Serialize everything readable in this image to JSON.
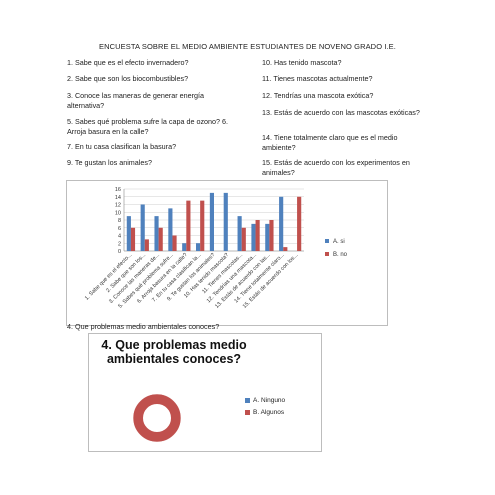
{
  "document": {
    "title": "ENCUESTA SOBRE EL MEDIO AMBIENTE ESTUDIANTES DE NOVENO GRADO I.E.",
    "questions_left": [
      "1. Sabe que es el efecto invernadero?",
      "2. Sabe que son los biocombustibles?",
      "3. Conoce las maneras de generar energía alternativa?",
      "5. Sabes qué problema sufre la capa de ozono? 6. Arroja basura en la calle?",
      "7. En tu casa clasifican la basura?",
      "9. Te gustan los animales?"
    ],
    "questions_right": [
      "10. Has tenido mascota?",
      "11. Tienes mascotas actualmente?",
      "12. Tendrías una mascota exótica?",
      "13. Estás de acuerdo con las mascotas exóticas?",
      "14. Tiene totalmente claro que es el medio ambiente?",
      "15. Estás de acuerdo con los experimentos en animales?"
    ],
    "q4_label": "4. Que problemas medio ambientales conoces?"
  },
  "chart_data": [
    {
      "type": "bar",
      "categories": [
        "1. Sabe que es el efecto...",
        "2. Sabe que son los...",
        "3. Conoce las maneras de...",
        "5. Sabes qué problema sufre...",
        "6. Arroja basura en la calle?",
        "7. En tu casa clasifican la...",
        "9. Te gustan los animales?",
        "10. Has tenido mascota?",
        "11. Tienes mascotas...",
        "12. Tendrías una mascota...",
        "13. Estás de acuerdo con las...",
        "14. Tiene totalmente claro...",
        "15. Estás de acuerdo con los..."
      ],
      "series": [
        {
          "name": "A. si",
          "color": "#4f81bd",
          "values": [
            9,
            12,
            9,
            11,
            2,
            2,
            15,
            15,
            9,
            7,
            7,
            14,
            0
          ]
        },
        {
          "name": "B. no",
          "color": "#c0504d",
          "values": [
            6,
            3,
            6,
            4,
            13,
            13,
            0,
            0,
            6,
            8,
            8,
            1,
            14
          ]
        }
      ],
      "ylim": [
        0,
        16
      ],
      "yticks": [
        0,
        2,
        4,
        6,
        8,
        10,
        12,
        14,
        16
      ],
      "grid": true,
      "legend_position": "right"
    },
    {
      "type": "pie",
      "title": "4. Que problemas medio ambientales conoces?",
      "labels": [
        "A. Ninguno",
        "B. Algunos"
      ],
      "values": [
        0,
        15
      ],
      "colors": [
        "#4f81bd",
        "#c0504d"
      ],
      "style": "doughnut",
      "legend_position": "right"
    }
  ]
}
